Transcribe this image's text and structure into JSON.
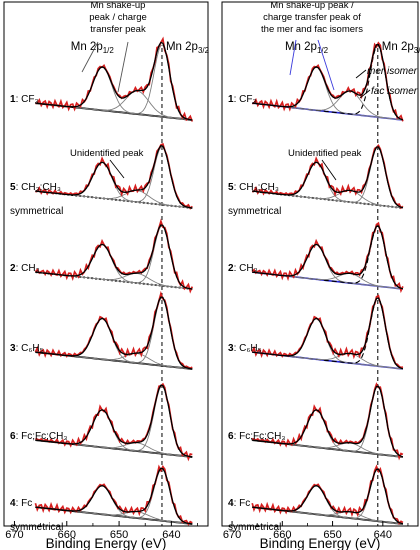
{
  "chart_data": [
    {
      "type": "line",
      "panel": "left",
      "xlabel": "Binding Energy (eV)",
      "x_ticks": [
        670,
        660,
        650,
        640
      ],
      "xlim": [
        672,
        633
      ],
      "x_reversed": true,
      "reference_line_x": 641.8,
      "peak_labels": [
        {
          "text": "Mn 2p",
          "sub": "1/2",
          "x": 653.5
        },
        {
          "text": "Mn 2p",
          "sub": "3/2",
          "x": 641.8
        }
      ],
      "annotations": [
        {
          "lines": [
            "Mn shake-up",
            "peak / charge",
            "transfer peak"
          ]
        },
        {
          "lines": [
            "Unidentified peak"
          ]
        }
      ],
      "series": [
        {
          "compound": "1",
          "formula": "CF₃",
          "extra": "",
          "peak_half": 0.6,
          "peak_32": 1.0,
          "sat": 0.32
        },
        {
          "compound": "5",
          "formula": "CH₃;CH₃",
          "extra": "symmetrical",
          "peak_half": 0.62,
          "peak_32": 1.0,
          "sat": 0.2
        },
        {
          "compound": "2",
          "formula": "CH₃",
          "extra": "",
          "peak_half": 0.58,
          "peak_32": 1.0,
          "sat": 0.16
        },
        {
          "compound": "3",
          "formula": "C₆H₅",
          "extra": "",
          "peak_half": 0.6,
          "peak_32": 1.0,
          "sat": 0.14
        },
        {
          "compound": "6",
          "formula": "Fc;Fc;CH₃",
          "extra": "",
          "peak_half": 0.55,
          "peak_32": 1.0,
          "sat": 0.12
        },
        {
          "compound": "4",
          "formula": "Fc",
          "extra": "symmetrical",
          "peak_half": 0.55,
          "peak_32": 1.0,
          "sat": 0.12
        }
      ]
    },
    {
      "type": "line",
      "panel": "right",
      "xlabel": "Binding Energy (eV)",
      "x_ticks": [
        670,
        660,
        650,
        640
      ],
      "xlim": [
        672,
        633
      ],
      "x_reversed": true,
      "reference_line_x": 641.0,
      "peak_labels": [
        {
          "text": "Mn 2p",
          "sub": "1/2",
          "x": 653.5
        },
        {
          "text": "Mn 2p",
          "sub": "3/2",
          "x": 641.0
        }
      ],
      "annotations": [
        {
          "lines": [
            "Mn shake-up peak /",
            "charge transfer peak of",
            "the mer and fac isomers"
          ]
        },
        {
          "lines": [
            "Unidentified peak"
          ]
        },
        {
          "lines": [
            "mer isomer"
          ]
        },
        {
          "lines": [
            "fac isomer"
          ]
        }
      ],
      "series": [
        {
          "compound": "1",
          "formula": "CF₃",
          "extra": "",
          "peak_half": 0.6,
          "peak_32": 1.0,
          "sat": 0.32
        },
        {
          "compound": "5",
          "formula": "CH₃;CH₃",
          "extra": "symmetrical",
          "peak_half": 0.62,
          "peak_32": 1.0,
          "sat": 0.2
        },
        {
          "compound": "2",
          "formula": "CH₃",
          "extra": "",
          "peak_half": 0.58,
          "peak_32": 1.0,
          "sat": 0.16
        },
        {
          "compound": "3",
          "formula": "C₆H₅",
          "extra": "",
          "peak_half": 0.6,
          "peak_32": 1.0,
          "sat": 0.14
        },
        {
          "compound": "6",
          "formula": "Fc;Fc;CH₃",
          "extra": "",
          "peak_half": 0.55,
          "peak_32": 1.0,
          "sat": 0.12
        },
        {
          "compound": "4",
          "formula": "Fc",
          "extra": "symmetrical",
          "peak_half": 0.55,
          "peak_32": 1.0,
          "sat": 0.12
        }
      ]
    }
  ],
  "colors": {
    "experimental": "#d71f1f",
    "fit_envelope": "#000000",
    "component": "#808080",
    "isomer_background": "#2a2ad8",
    "annotation_arrow_left": "#555555",
    "annotation_arrow_right": "#3b3bdc"
  }
}
